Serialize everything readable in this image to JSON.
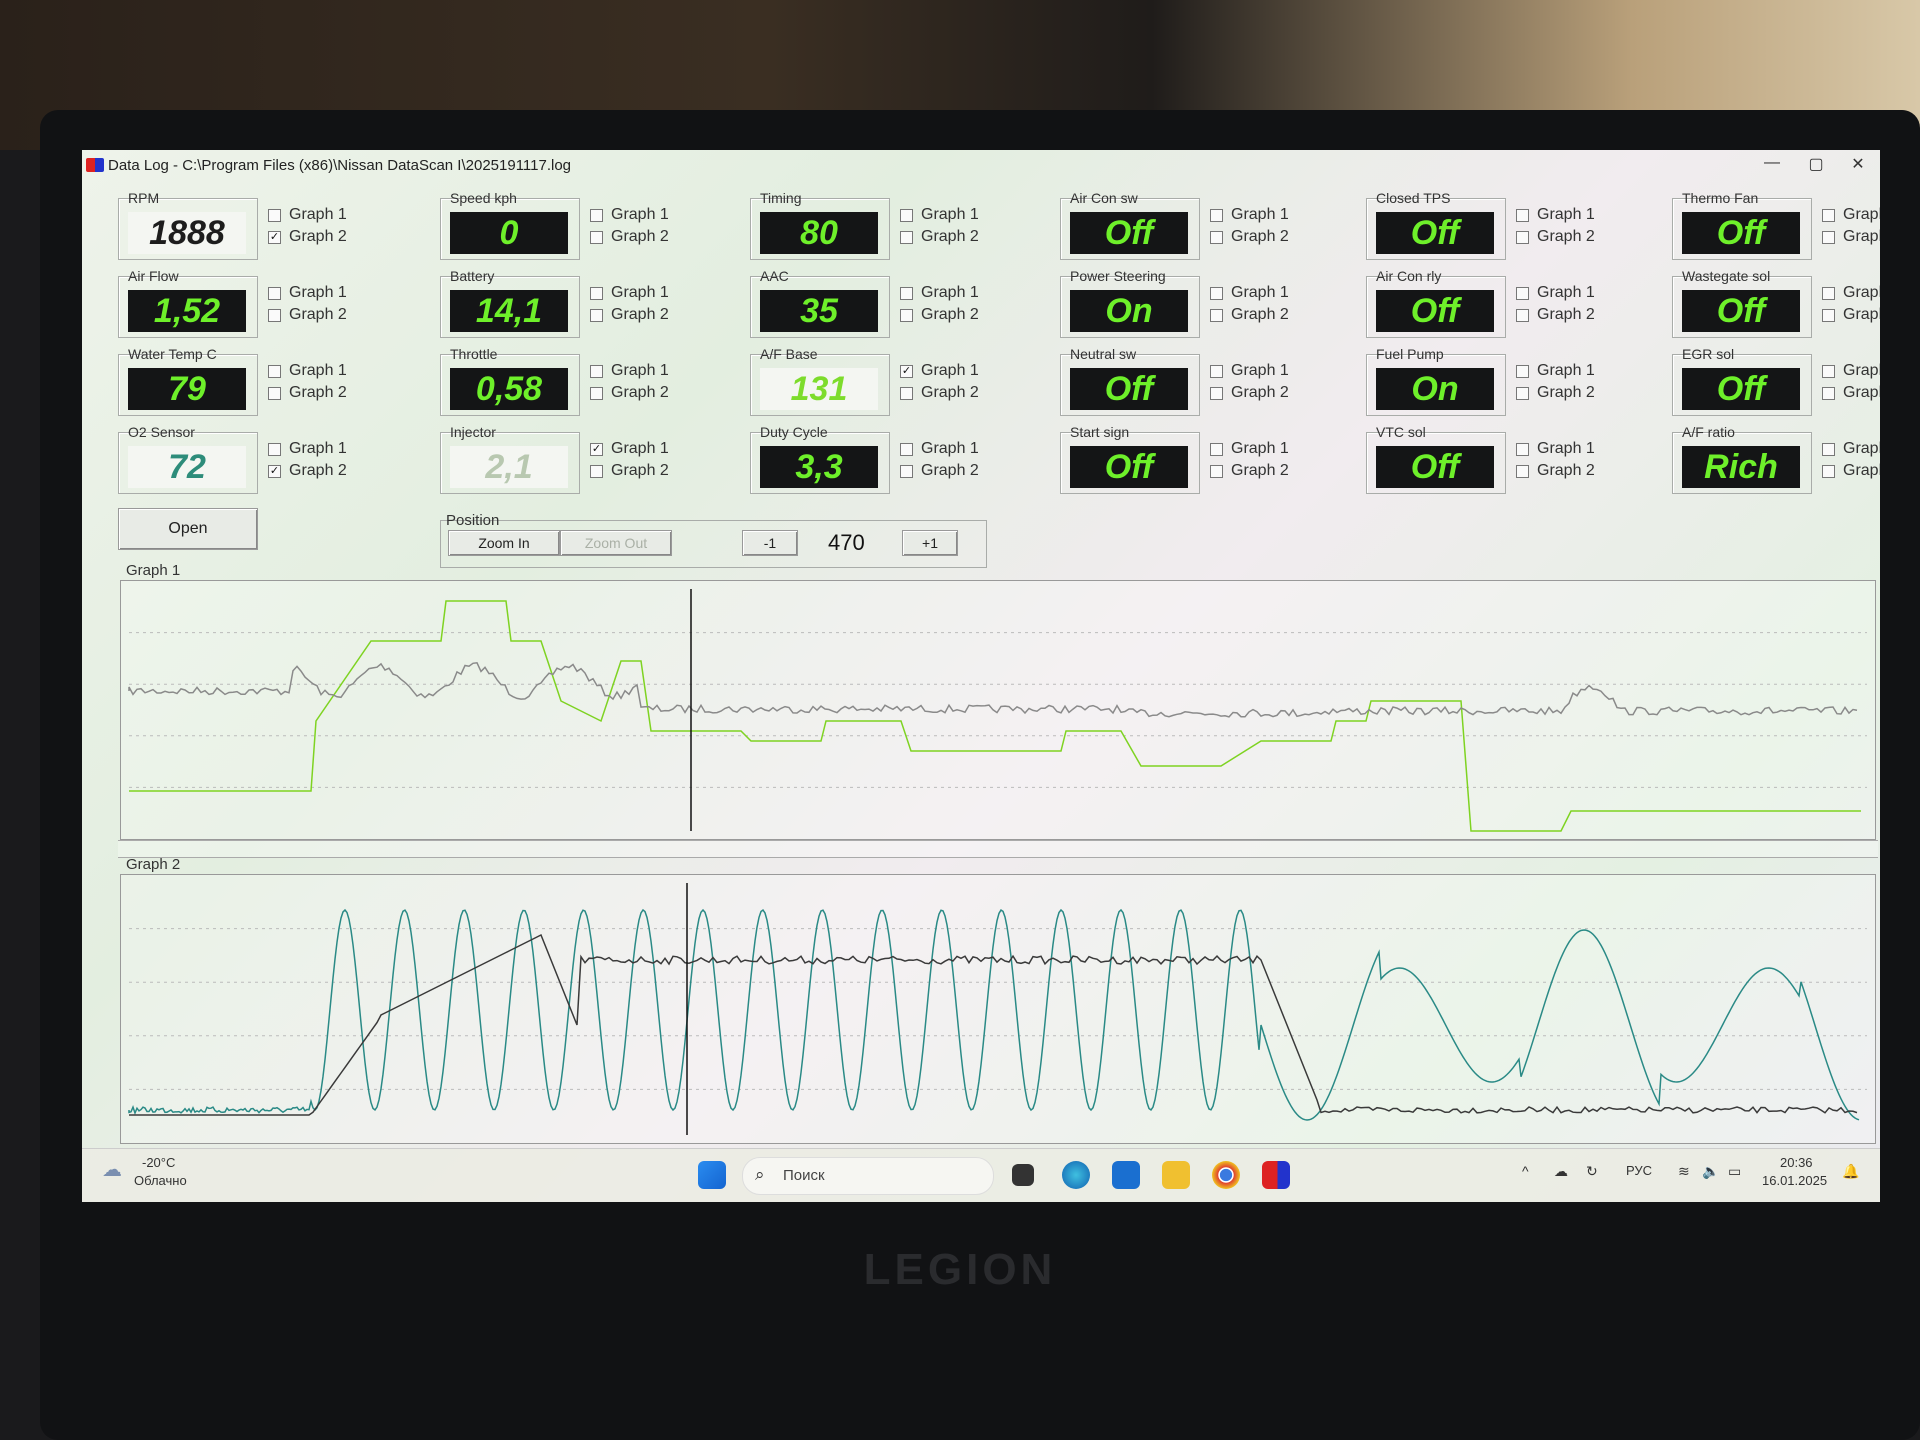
{
  "window": {
    "title": "Data Log - C:\\Program Files (x86)\\Nissan DataScan I\\2025191117.log",
    "minimize_icon": "minimize-icon",
    "maximize_icon": "restore-icon",
    "close_icon": "close-icon",
    "minimize": "—",
    "maximize": "▢",
    "close": "✕"
  },
  "graph_option_labels": {
    "g1": "Graph 1",
    "g2": "Graph 2"
  },
  "gauges": [
    {
      "label": "RPM",
      "value": "1888",
      "display": "light",
      "graph1": false,
      "graph2": true
    },
    {
      "label": "Air Flow",
      "value": "1,52",
      "display": "dark",
      "graph1": false,
      "graph2": false
    },
    {
      "label": "Water Temp C",
      "value": "79",
      "display": "dark",
      "graph1": false,
      "graph2": false
    },
    {
      "label": "O2 Sensor",
      "value": "72",
      "display": "teal",
      "graph1": false,
      "graph2": true
    },
    {
      "label": "Speed kph",
      "value": "0",
      "display": "dark",
      "graph1": false,
      "graph2": false
    },
    {
      "label": "Battery",
      "value": "14,1",
      "display": "dark",
      "graph1": false,
      "graph2": false
    },
    {
      "label": "Throttle",
      "value": "0,58",
      "display": "dark",
      "graph1": false,
      "graph2": false
    },
    {
      "label": "Injector",
      "value": "2,1",
      "display": "faded",
      "graph1": true,
      "graph2": false
    },
    {
      "label": "Timing",
      "value": "80",
      "display": "dark",
      "graph1": false,
      "graph2": false
    },
    {
      "label": "AAC",
      "value": "35",
      "display": "dark",
      "graph1": false,
      "graph2": false
    },
    {
      "label": "A/F Base",
      "value": "131",
      "display": "lgreen",
      "graph1": true,
      "graph2": false
    },
    {
      "label": "Duty Cycle",
      "value": "3,3",
      "display": "dark",
      "graph1": false,
      "graph2": false
    },
    {
      "label": "Air Con sw",
      "value": "Off",
      "display": "dark",
      "graph1": false,
      "graph2": false
    },
    {
      "label": "Power Steering",
      "value": "On",
      "display": "dark",
      "graph1": false,
      "graph2": false
    },
    {
      "label": "Neutral sw",
      "value": "Off",
      "display": "dark",
      "graph1": false,
      "graph2": false
    },
    {
      "label": "Start sign",
      "value": "Off",
      "display": "dark",
      "graph1": false,
      "graph2": false
    },
    {
      "label": "Closed TPS",
      "value": "Off",
      "display": "dark",
      "graph1": false,
      "graph2": false
    },
    {
      "label": "Air Con rly",
      "value": "Off",
      "display": "dark",
      "graph1": false,
      "graph2": false
    },
    {
      "label": "Fuel Pump",
      "value": "On",
      "display": "dark",
      "graph1": false,
      "graph2": false
    },
    {
      "label": "VTC sol",
      "value": "Off",
      "display": "dark",
      "graph1": false,
      "graph2": false
    },
    {
      "label": "Thermo Fan",
      "value": "Off",
      "display": "dark",
      "graph1": false,
      "graph2": false
    },
    {
      "label": "Wastegate sol",
      "value": "Off",
      "display": "dark",
      "graph1": false,
      "graph2": false
    },
    {
      "label": "EGR sol",
      "value": "Off",
      "display": "dark",
      "graph1": false,
      "graph2": false
    },
    {
      "label": "A/F ratio",
      "value": "Rich",
      "display": "dark",
      "graph1": false,
      "graph2": false
    }
  ],
  "controls": {
    "open": "Open",
    "position_label": "Position",
    "zoom_in": "Zoom In",
    "zoom_out": "Zoom Out",
    "minus": "-1",
    "position_value": "470",
    "plus": "+1"
  },
  "graphs": {
    "graph1_label": "Graph 1",
    "graph2_label": "Graph 2",
    "colors": {
      "green": "#7ed321",
      "gray": "#8a8a8a",
      "teal": "#2a8a86",
      "dark": "#3a3a3a",
      "cursor": "#111111"
    }
  },
  "taskbar": {
    "weather_temp": "-20°C",
    "weather_desc": "Облачно",
    "weather_icon": "cloud-icon",
    "search_placeholder": "Поиск",
    "language": "РУС",
    "time": "20:36",
    "date": "16.01.2025",
    "apps": [
      "start-icon",
      "task-view-icon",
      "edge-icon",
      "outlook-icon",
      "file-explorer-icon",
      "chrome-icon",
      "nissan-datascan-icon"
    ]
  }
}
